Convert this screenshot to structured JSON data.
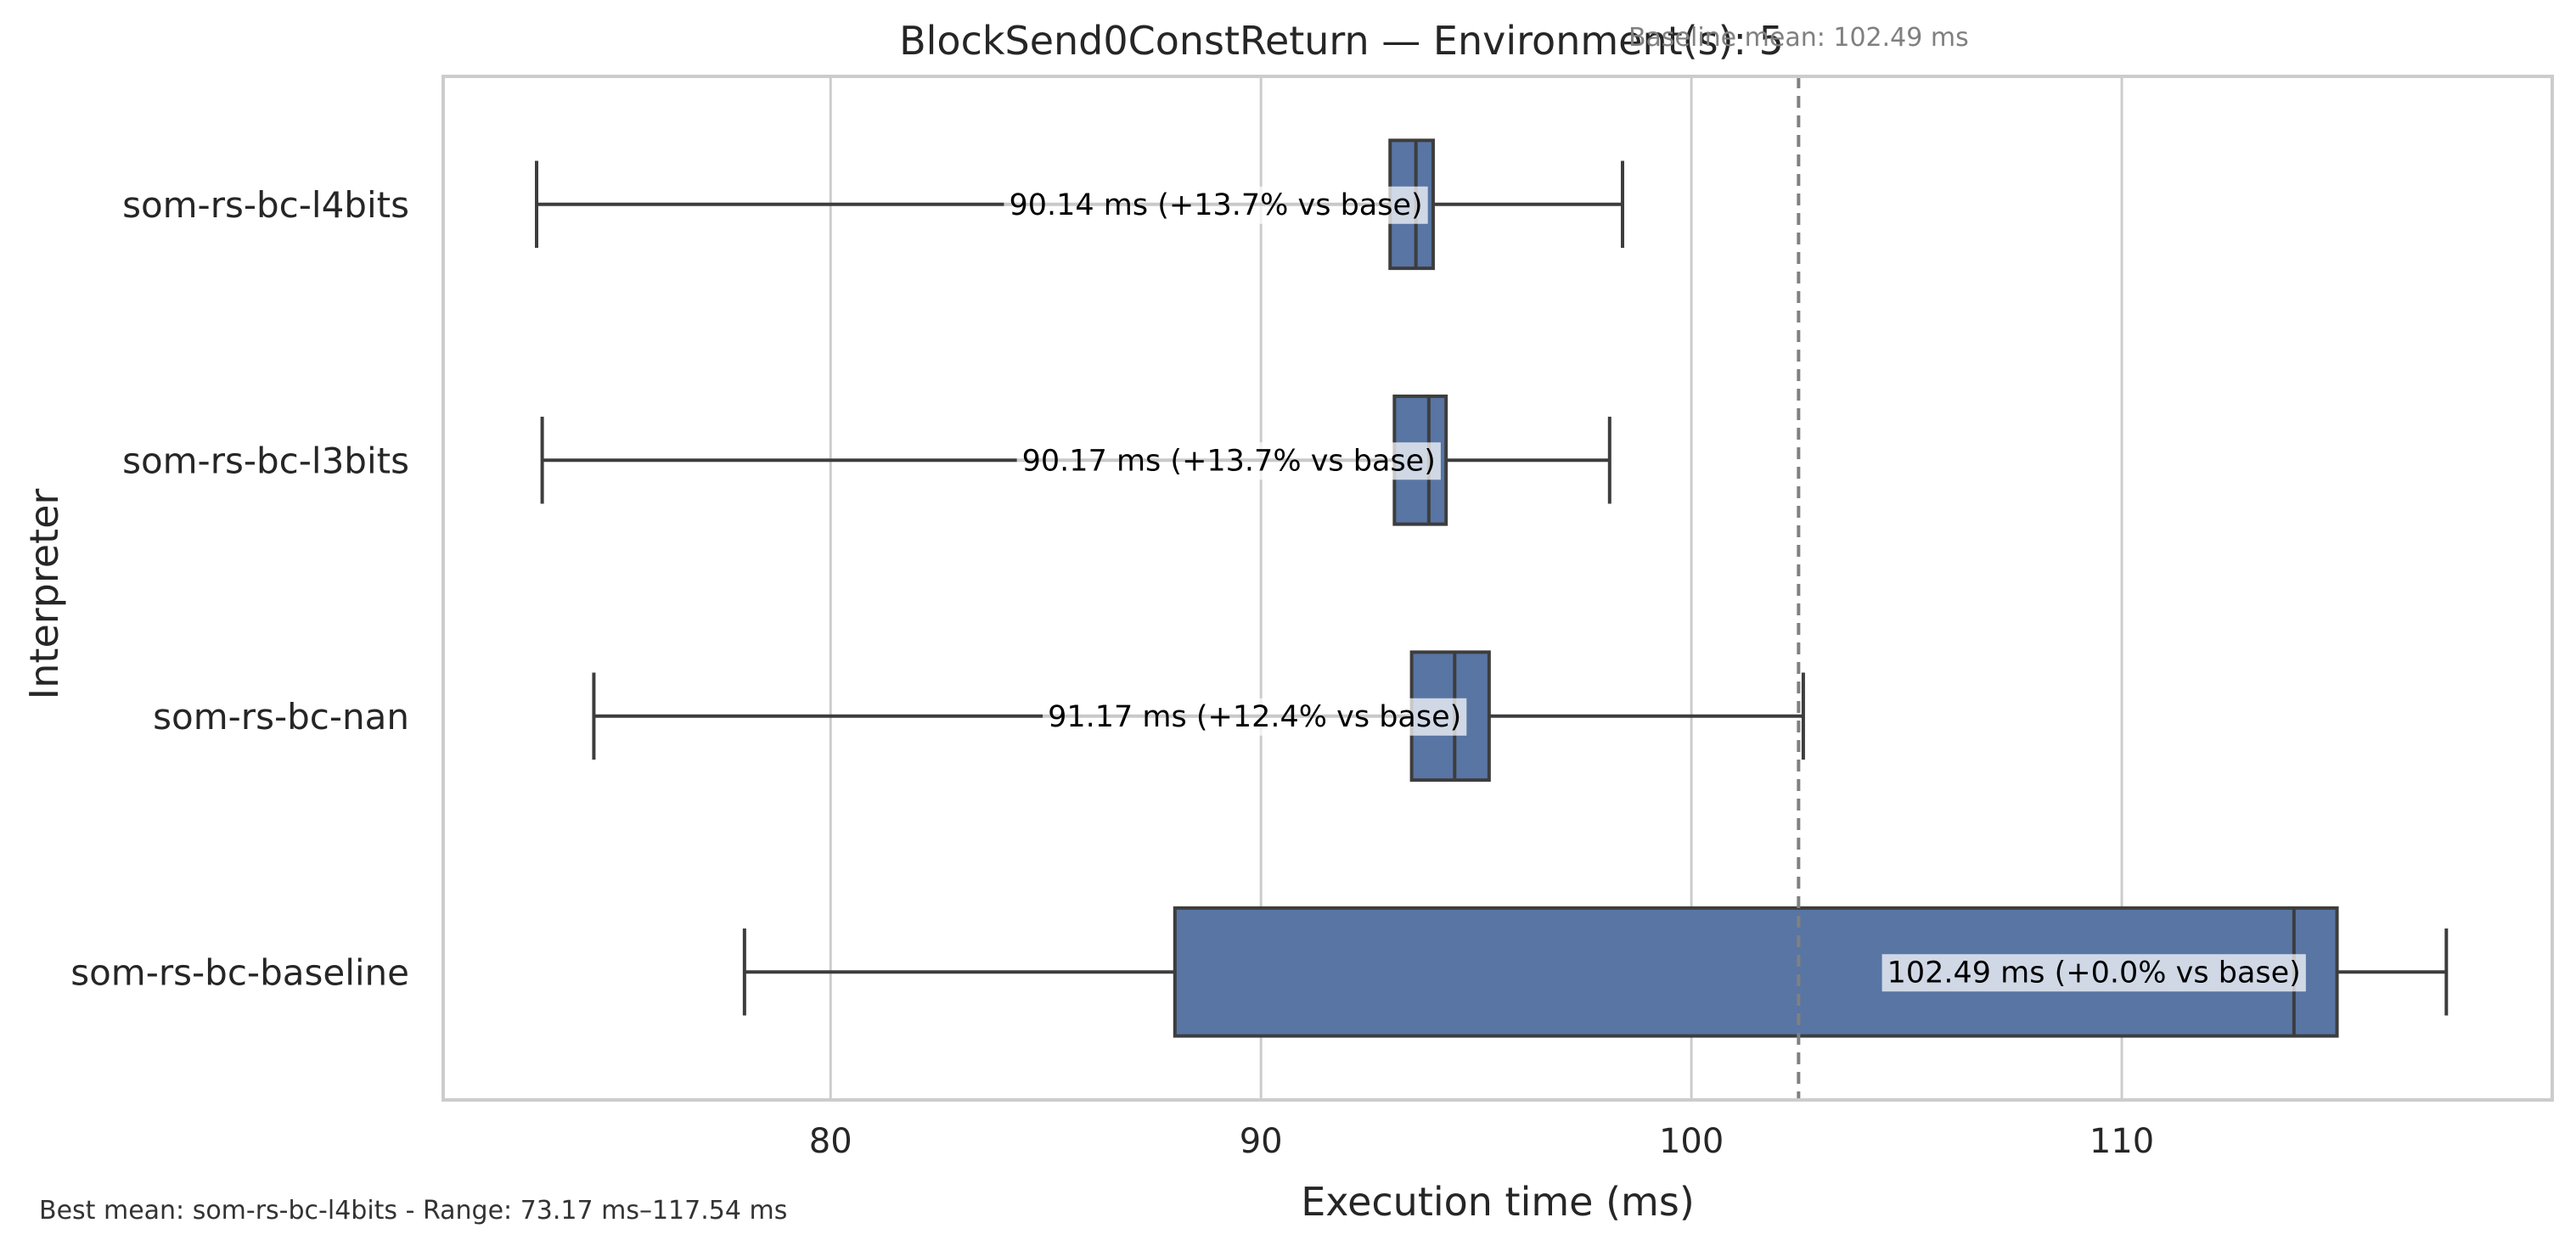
{
  "chart_data": {
    "type": "boxplot",
    "title": "BlockSend0ConstReturn — Environment(s): 5",
    "xlabel": "Execution time (ms)",
    "ylabel": "Interpreter",
    "xlim": [
      71,
      120
    ],
    "xticks": [
      80,
      90,
      100,
      110
    ],
    "grid": "vertical",
    "orientation": "horizontal",
    "box_color": "#5875a4",
    "line_color": "#3d3d3d",
    "baseline": {
      "value": 102.49,
      "label": "Baseline mean: 102.49 ms"
    },
    "series": [
      {
        "name": "som-rs-bc-l4bits",
        "whisker_low": 73.17,
        "q1": 93.0,
        "median": 93.6,
        "q3": 94.0,
        "whisker_high": 98.4,
        "mean_label": "90.14 ms  (+13.7% vs base)"
      },
      {
        "name": "som-rs-bc-l3bits",
        "whisker_low": 73.3,
        "q1": 93.1,
        "median": 93.9,
        "q3": 94.3,
        "whisker_high": 98.1,
        "mean_label": "90.17 ms  (+13.7% vs base)"
      },
      {
        "name": "som-rs-bc-nan",
        "whisker_low": 74.5,
        "q1": 93.5,
        "median": 94.5,
        "q3": 95.3,
        "whisker_high": 102.6,
        "mean_label": "91.17 ms  (+12.4% vs base)"
      },
      {
        "name": "som-rs-bc-baseline",
        "whisker_low": 78.0,
        "q1": 88.0,
        "median": 114.0,
        "q3": 115.0,
        "whisker_high": 117.54,
        "mean_label": "102.49 ms  (+0.0% vs base)"
      }
    ],
    "footnote": "Best mean: som-rs-bc-l4bits - Range: 73.17 ms–117.54 ms"
  }
}
